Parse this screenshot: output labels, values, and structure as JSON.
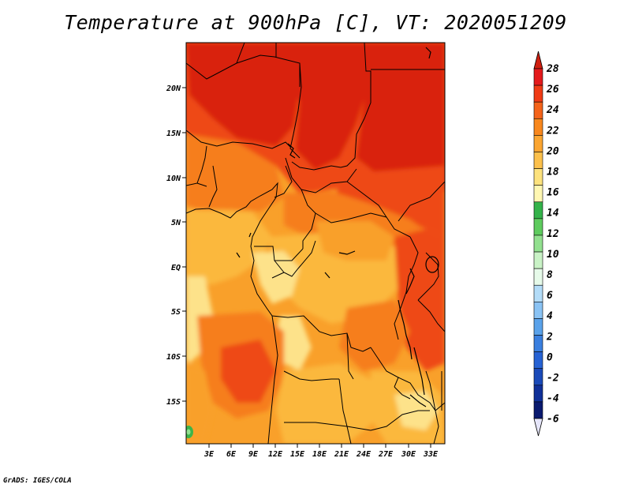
{
  "title": "Temperature at 900hPa [C], VT: 2020051209",
  "credit": "GrADS: IGES/COLA",
  "map": {
    "lat_labels": [
      "20N",
      "15N",
      "10N",
      "5N",
      "EQ",
      "5S",
      "10S",
      "15S"
    ],
    "lon_labels": [
      "3E",
      "6E",
      "9E",
      "12E",
      "15E",
      "18E",
      "21E",
      "24E",
      "27E",
      "30E",
      "33E"
    ]
  },
  "colorbar": {
    "labels": [
      "28",
      "26",
      "24",
      "22",
      "20",
      "18",
      "16",
      "14",
      "12",
      "10",
      "8",
      "6",
      "4",
      "2",
      "0",
      "-2",
      "-4",
      "-6"
    ],
    "colors": [
      "#e41a1c",
      "#f03b15",
      "#f4631a",
      "#f8871d",
      "#fba531",
      "#fcc04b",
      "#fde27d",
      "#fff7b2",
      "#34b34a",
      "#5ecb5e",
      "#92e08f",
      "#c9f2c6",
      "#e6fae9",
      "#b3dcf8",
      "#8ac3f4",
      "#5aa2ea",
      "#3a7fdf",
      "#2662d4",
      "#1a4ab9",
      "#103099",
      "#0a1a6f"
    ],
    "top_arrow_color": "#cf1f10",
    "bottom_arrow_color": "#e6e6fa"
  },
  "colors": {
    "dark_red": "#d9230f",
    "red_orange": "#ee4a12",
    "orange": "#f67e1c",
    "light_orange": "#f9a02a",
    "amber": "#fbb83c",
    "pale_yellow": "#fde28a",
    "green": "#3cb44a"
  }
}
